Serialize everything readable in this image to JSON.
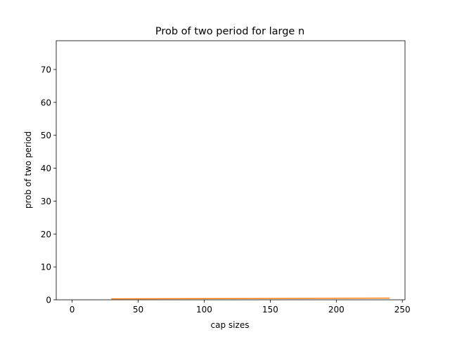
{
  "chart_data": {
    "type": "line",
    "title": "Prob of two period for large n",
    "xlabel": "cap sizes",
    "ylabel": "prob of two period",
    "xlim": [
      -12,
      252
    ],
    "ylim": [
      0,
      78.75
    ],
    "xticks": [
      0,
      50,
      100,
      150,
      200,
      250
    ],
    "yticks": [
      0,
      10,
      20,
      30,
      40,
      50,
      60,
      70
    ],
    "grid": false,
    "legend": "none",
    "series": [
      {
        "color": "#ff7f0e",
        "x": [
          30,
          240
        ],
        "y": [
          0.3,
          0.5
        ]
      }
    ]
  }
}
